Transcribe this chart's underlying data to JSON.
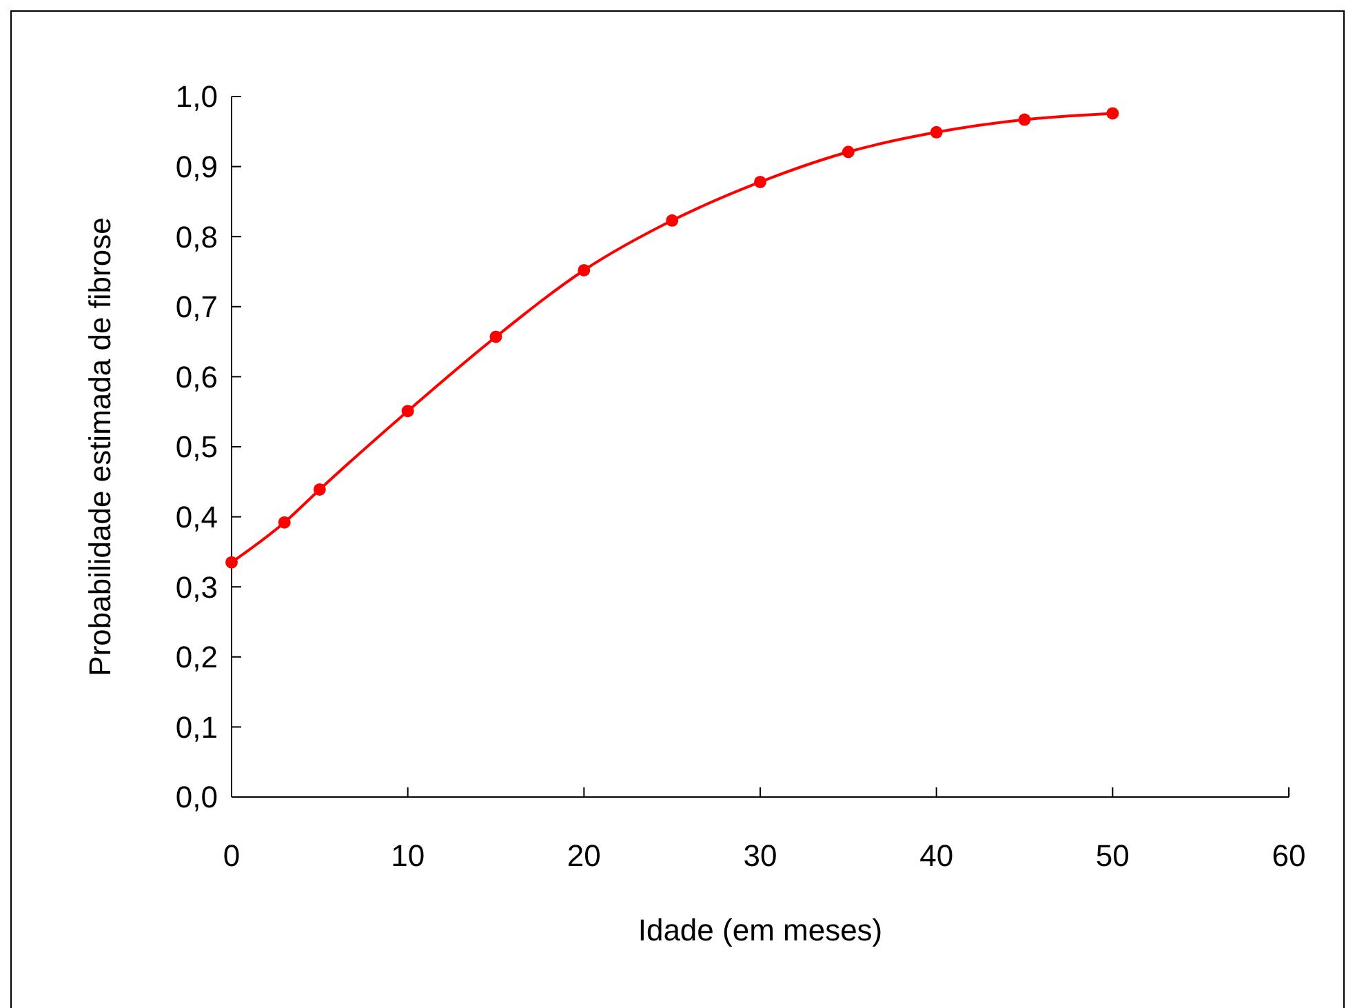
{
  "chart_data": {
    "type": "line",
    "xlabel": "Idade (em meses)",
    "ylabel": "Probabilidade estimada de fibrose",
    "x": [
      0,
      3,
      5,
      10,
      15,
      20,
      25,
      30,
      35,
      40,
      45,
      50
    ],
    "series": [
      {
        "color": "#ff0000",
        "values": [
          0.335,
          0.392,
          0.439,
          0.551,
          0.657,
          0.752,
          0.823,
          0.878,
          0.921,
          0.949,
          0.967,
          0.976
        ]
      }
    ],
    "xlim": [
      0,
      60
    ],
    "xticks": [
      0,
      10,
      20,
      30,
      40,
      50,
      60
    ],
    "ylim": [
      0,
      1
    ],
    "yticks": [
      {
        "value": 0,
        "label": "0,0"
      },
      {
        "value": 0.1,
        "label": "0,1"
      },
      {
        "value": 0.2,
        "label": "0,2"
      },
      {
        "value": 0.3,
        "label": "0,3"
      },
      {
        "value": 0.4,
        "label": "0,4"
      },
      {
        "value": 0.5,
        "label": "0,5"
      },
      {
        "value": 0.6,
        "label": "0,6"
      },
      {
        "value": 0.7,
        "label": "0,7"
      },
      {
        "value": 0.8,
        "label": "0,8"
      },
      {
        "value": 0.9,
        "label": "0,9"
      },
      {
        "value": 1,
        "label": "1,0"
      }
    ],
    "grid": false,
    "marker": "circle",
    "line_style": "solid"
  }
}
